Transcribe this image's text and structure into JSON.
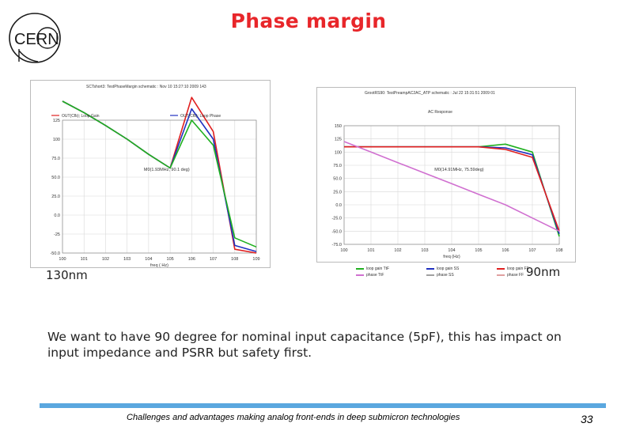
{
  "slide": {
    "title": "Phase margin",
    "logo_text": "CERN",
    "label_left": "130nm",
    "label_right": "90nm",
    "body": "We want to have 90 degree for nominal input capacitance (5pF), this has impact on input impedance and PSRR but safety first.",
    "footer": "Challenges and advantages making analog front-ends in deep submicron technologies",
    "page_number": "33",
    "accent_color": "#e8262a",
    "bar_color": "#5aa7df"
  },
  "chart_data": [
    {
      "type": "line",
      "header": "SCTshort3: TestPhaseMargin schematic : Nov 10 15:27:10 2009 143",
      "legend": [
        "OUT(Cfb); Loop Gain",
        "OUT(Cfb); Loop Phase"
      ],
      "annotation": "M0(1.93MHz, 90.1 deg)",
      "y_ticks": [
        "125",
        "100",
        "75.0",
        "50.0",
        "25.0",
        "0.0",
        "-25",
        "-50.0"
      ],
      "x_ticks": [
        "10^0",
        "10^1",
        "10^2",
        "10^3",
        "10^4",
        "10^5",
        "10^6",
        "10^7",
        "10^8",
        "10^9"
      ],
      "xlabel": "freq ( Hz)",
      "series": [
        {
          "values": [
            150,
            135,
            118,
            100,
            80,
            62,
            155,
            110,
            -45,
            -50
          ],
          "color": "#e02020"
        },
        {
          "values": [
            150,
            135,
            118,
            100,
            80,
            62,
            140,
            100,
            -40,
            -48
          ],
          "color": "#2030c0"
        },
        {
          "values": [
            150,
            135,
            118,
            100,
            80,
            62,
            125,
            92,
            -30,
            -42
          ],
          "color": "#20b020"
        }
      ]
    },
    {
      "type": "line",
      "header": "GrootRS90: TestPreampAC2AC_ATP schematic : Jul 22 15:31:51 2009 01",
      "subtitle": "AC Response",
      "annotation": "M0(14.91MHz, 75.59deg)",
      "y_ticks": [
        "150",
        "125",
        "100",
        "75.0",
        "50.0",
        "25.0",
        "0.0",
        "-25.0",
        "-50.0",
        "-75.0"
      ],
      "x_ticks": [
        "10^0",
        "10^1",
        "10^2",
        "10^3",
        "10^4",
        "10^5",
        "10^6",
        "10^7",
        "10^8"
      ],
      "xlabel": "freq (Hz)",
      "legend": [
        "loop gain TtF",
        "loop gain SS",
        "loop gain FF",
        "phase TtF",
        "phase SS",
        "phase FF"
      ],
      "series": [
        {
          "values": [
            110,
            110,
            110,
            110,
            110,
            110,
            115,
            100,
            -60
          ],
          "color": "#20b020"
        },
        {
          "values": [
            110,
            110,
            110,
            110,
            110,
            110,
            108,
            95,
            -55
          ],
          "color": "#2030c0"
        },
        {
          "values": [
            110,
            110,
            110,
            110,
            110,
            110,
            105,
            90,
            -50
          ],
          "color": "#e02020"
        },
        {
          "values": [
            120,
            100,
            80,
            60,
            40,
            20,
            0,
            -25,
            -50
          ],
          "color": "#d070d0"
        }
      ]
    }
  ]
}
